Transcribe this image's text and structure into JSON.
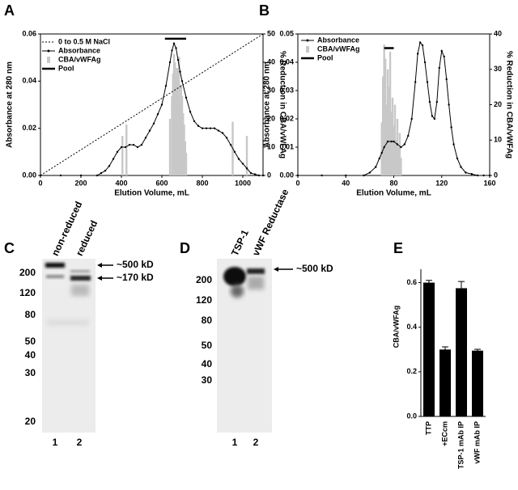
{
  "chart_data": [
    {
      "type": "combo",
      "panel": "A",
      "xlabel": "Elution Volume, mL",
      "ylabel": "Absorbance at 280 nm",
      "y2label": "% Reduction in CBA/vWFAg",
      "xlim": [
        0,
        1100
      ],
      "xticks": [
        0,
        200,
        400,
        600,
        800,
        1000
      ],
      "ylim": [
        0,
        0.06
      ],
      "yticks": [
        {
          "value": 0,
          "label": "0.00"
        },
        0.02,
        0.04,
        0.06
      ],
      "y2lim": [
        0,
        50
      ],
      "y2ticks": [
        0,
        10,
        20,
        30,
        40,
        50
      ],
      "series": [
        {
          "name": "0 to 0.5 M NaCl",
          "type": "line",
          "dashed": true,
          "color": "#000000",
          "x": [
            0,
            1100
          ],
          "values": [
            0,
            0.06
          ]
        },
        {
          "name": "Absorbance",
          "type": "line",
          "markers": true,
          "color": "#000000",
          "x": [
            0,
            100,
            200,
            280,
            300,
            320,
            340,
            360,
            380,
            400,
            420,
            440,
            460,
            480,
            500,
            520,
            540,
            560,
            580,
            600,
            620,
            640,
            650,
            660,
            670,
            680,
            690,
            700,
            720,
            740,
            760,
            780,
            800,
            820,
            840,
            860,
            880,
            900,
            920,
            940,
            960,
            980,
            1000,
            1020,
            1040,
            1060,
            1080,
            1100
          ],
          "values": [
            0,
            0,
            0,
            0,
            0.001,
            0.002,
            0.004,
            0.007,
            0.01,
            0.012,
            0.012,
            0.013,
            0.013,
            0.012,
            0.013,
            0.016,
            0.019,
            0.022,
            0.026,
            0.03,
            0.038,
            0.048,
            0.053,
            0.056,
            0.054,
            0.049,
            0.044,
            0.04,
            0.033,
            0.027,
            0.023,
            0.021,
            0.02,
            0.02,
            0.02,
            0.02,
            0.019,
            0.018,
            0.016,
            0.013,
            0.01,
            0.007,
            0.005,
            0.003,
            0.001,
            0.0005,
            0,
            0
          ]
        },
        {
          "name": "CBA/vWFAg",
          "type": "bar",
          "axis": "y2",
          "color": "#c8c8c8",
          "x": [
            405,
            425,
            640,
            650,
            655,
            660,
            665,
            670,
            675,
            680,
            685,
            690,
            695,
            700,
            705,
            710,
            715,
            720,
            950,
            1020
          ],
          "values": [
            14,
            18,
            20,
            28,
            36,
            43,
            40,
            33,
            38,
            30,
            42,
            25,
            32,
            28,
            22,
            18,
            12,
            8,
            19,
            14
          ]
        },
        {
          "name": "Pool",
          "type": "line",
          "thick": true,
          "color": "#000000",
          "x": [
            615,
            720
          ],
          "values": [
            0.058,
            0.058
          ]
        }
      ]
    },
    {
      "type": "combo",
      "panel": "B",
      "xlabel": "Elution Volume, mL",
      "ylabel": "Absorbance at 280 nm",
      "y2label": "% Reduction in CBA/vWFAg",
      "xlim": [
        0,
        160
      ],
      "xticks": [
        0,
        40,
        80,
        120,
        160
      ],
      "ylim": [
        0,
        0.05
      ],
      "yticks": [
        {
          "value": 0,
          "label": "0.00"
        },
        0.01,
        0.02,
        0.03,
        0.04,
        0.05
      ],
      "y2lim": [
        0,
        40
      ],
      "y2ticks": [
        0,
        10,
        20,
        30,
        40
      ],
      "series": [
        {
          "name": "Absorbance",
          "type": "line",
          "markers": true,
          "color": "#000000",
          "x": [
            0,
            20,
            40,
            55,
            60,
            65,
            68,
            70,
            72,
            75,
            78,
            80,
            83,
            86,
            89,
            92,
            95,
            98,
            100,
            102,
            104,
            106,
            108,
            110,
            112,
            114,
            116,
            118,
            120,
            122,
            124,
            126,
            128,
            130,
            133,
            136,
            140,
            145,
            150,
            155,
            160
          ],
          "values": [
            0,
            0,
            0,
            0,
            0.001,
            0.003,
            0.006,
            0.008,
            0.01,
            0.012,
            0.012,
            0.012,
            0.011,
            0.01,
            0.011,
            0.014,
            0.02,
            0.033,
            0.043,
            0.047,
            0.046,
            0.04,
            0.033,
            0.026,
            0.021,
            0.02,
            0.026,
            0.038,
            0.044,
            0.042,
            0.034,
            0.025,
            0.017,
            0.011,
            0.006,
            0.003,
            0.001,
            0.0005,
            0,
            0,
            0
          ]
        },
        {
          "name": "CBA/vWFAg",
          "type": "bar",
          "axis": "y2",
          "color": "#c8c8c8",
          "x": [
            70,
            71,
            72,
            73,
            74,
            75,
            76,
            77,
            78,
            79,
            80,
            81,
            82,
            83,
            84,
            85,
            86
          ],
          "values": [
            15,
            28,
            37,
            33,
            20,
            30,
            25,
            35,
            18,
            22,
            14,
            20,
            10,
            16,
            8,
            12,
            5
          ]
        },
        {
          "name": "Pool",
          "type": "line",
          "thick": true,
          "color": "#000000",
          "x": [
            72,
            80
          ],
          "values": [
            0.045,
            0.045
          ]
        }
      ]
    },
    {
      "type": "bar",
      "panel": "E",
      "ylabel": "CBA/vWFAg",
      "categories": [
        "TTP",
        "+ECcm",
        "TSP-1 mAb IP",
        "vWF mAb IP"
      ],
      "values": [
        0.6,
        0.3,
        0.575,
        0.295
      ],
      "errors": [
        0.01,
        0.012,
        0.03,
        0.006
      ],
      "color": "#000000",
      "ylim": [
        0,
        0.66
      ],
      "yticks": [
        {
          "value": 0,
          "label": "0.0"
        },
        0.2,
        0.4,
        0.6
      ]
    }
  ],
  "gels": [
    {
      "panel": "C",
      "lane_labels": [
        "non-reduced",
        "reduced"
      ],
      "markers": [
        "200",
        "120",
        "80",
        "50",
        "40",
        "30",
        "20"
      ],
      "annotations": [
        "~500 kD",
        "~170 kD"
      ],
      "lanes": [
        "1",
        "2"
      ]
    },
    {
      "panel": "D",
      "lane_labels": [
        "TSP-1",
        "vWF Reductase"
      ],
      "markers": [
        "200",
        "120",
        "80",
        "50",
        "40",
        "30"
      ],
      "annotations": [
        "~500 kD"
      ],
      "lanes": [
        "1",
        "2"
      ]
    }
  ]
}
